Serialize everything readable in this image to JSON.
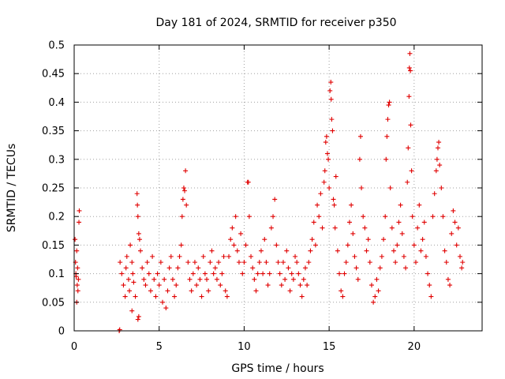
{
  "chart_data": {
    "type": "scatter",
    "title": "Day 181 of 2024, SRMTID for receiver p350",
    "xlabel": "GPS time / hours",
    "ylabel": "SRMTID / TECUs",
    "xlim": [
      0,
      24
    ],
    "ylim": [
      0,
      0.5
    ],
    "xticks": [
      0,
      5,
      10,
      15,
      20
    ],
    "xtick_labels": [
      "0",
      "5",
      "10",
      "15",
      "20"
    ],
    "yticks": [
      0,
      0.05,
      0.1,
      0.15,
      0.2,
      0.25,
      0.3,
      0.35,
      0.4,
      0.45,
      0.5
    ],
    "ytick_labels": [
      "0",
      "0.05",
      "0.1",
      "0.15",
      "0.2",
      "0.25",
      "0.3",
      "0.35",
      "0.4",
      "0.45",
      "0.5"
    ],
    "grid": true,
    "marker": "+",
    "color": "#e00000",
    "series": [
      {
        "name": "SRMTID",
        "points": [
          [
            0.05,
            0.16
          ],
          [
            0.08,
            0.12
          ],
          [
            0.1,
            0.1
          ],
          [
            0.12,
            0.095
          ],
          [
            0.15,
            0.14
          ],
          [
            0.18,
            0.08
          ],
          [
            0.2,
            0.11
          ],
          [
            0.22,
            0.07
          ],
          [
            0.25,
            0.09
          ],
          [
            0.28,
            0.19
          ],
          [
            0.3,
            0.21
          ],
          [
            0.15,
            0.05
          ],
          [
            2.65,
            0.0
          ],
          [
            2.68,
            0.002
          ],
          [
            2.7,
            0.12
          ],
          [
            2.8,
            0.1
          ],
          [
            2.9,
            0.08
          ],
          [
            3.0,
            0.06
          ],
          [
            3.05,
            0.11
          ],
          [
            3.1,
            0.13
          ],
          [
            3.2,
            0.09
          ],
          [
            3.25,
            0.07
          ],
          [
            3.3,
            0.15
          ],
          [
            3.4,
            0.12
          ],
          [
            3.45,
            0.1
          ],
          [
            3.5,
            0.085
          ],
          [
            3.6,
            0.06
          ],
          [
            3.7,
            0.24
          ],
          [
            3.72,
            0.22
          ],
          [
            3.75,
            0.2
          ],
          [
            3.8,
            0.17
          ],
          [
            3.85,
            0.16
          ],
          [
            3.9,
            0.14
          ],
          [
            4.0,
            0.11
          ],
          [
            4.1,
            0.09
          ],
          [
            4.2,
            0.08
          ],
          [
            4.3,
            0.12
          ],
          [
            4.4,
            0.1
          ],
          [
            4.5,
            0.07
          ],
          [
            4.6,
            0.13
          ],
          [
            4.7,
            0.09
          ],
          [
            4.8,
            0.06
          ],
          [
            4.9,
            0.1
          ],
          [
            5.0,
            0.08
          ],
          [
            5.1,
            0.12
          ],
          [
            5.2,
            0.05
          ],
          [
            5.3,
            0.09
          ],
          [
            5.4,
            0.04
          ],
          [
            5.5,
            0.07
          ],
          [
            5.6,
            0.11
          ],
          [
            5.7,
            0.13
          ],
          [
            5.8,
            0.09
          ],
          [
            5.9,
            0.06
          ],
          [
            6.0,
            0.08
          ],
          [
            3.8,
            0.025
          ],
          [
            3.75,
            0.02
          ],
          [
            3.4,
            0.035
          ],
          [
            6.1,
            0.11
          ],
          [
            6.2,
            0.13
          ],
          [
            6.3,
            0.15
          ],
          [
            6.35,
            0.2
          ],
          [
            6.4,
            0.23
          ],
          [
            6.45,
            0.25
          ],
          [
            6.5,
            0.245
          ],
          [
            6.55,
            0.28
          ],
          [
            6.6,
            0.22
          ],
          [
            6.7,
            0.12
          ],
          [
            6.8,
            0.09
          ],
          [
            6.9,
            0.07
          ],
          [
            7.0,
            0.1
          ],
          [
            7.1,
            0.12
          ],
          [
            7.2,
            0.08
          ],
          [
            7.3,
            0.11
          ],
          [
            7.4,
            0.09
          ],
          [
            7.5,
            0.06
          ],
          [
            7.6,
            0.13
          ],
          [
            7.7,
            0.1
          ],
          [
            7.8,
            0.09
          ],
          [
            7.9,
            0.07
          ],
          [
            8.0,
            0.12
          ],
          [
            8.1,
            0.14
          ],
          [
            8.2,
            0.1
          ],
          [
            8.3,
            0.11
          ],
          [
            8.4,
            0.09
          ],
          [
            8.5,
            0.12
          ],
          [
            8.6,
            0.08
          ],
          [
            8.7,
            0.1
          ],
          [
            8.8,
            0.13
          ],
          [
            8.9,
            0.07
          ],
          [
            9.0,
            0.06
          ],
          [
            9.1,
            0.13
          ],
          [
            9.2,
            0.16
          ],
          [
            9.3,
            0.18
          ],
          [
            9.4,
            0.15
          ],
          [
            9.5,
            0.2
          ],
          [
            9.6,
            0.14
          ],
          [
            9.7,
            0.12
          ],
          [
            9.8,
            0.17
          ],
          [
            9.9,
            0.1
          ],
          [
            10.0,
            0.12
          ],
          [
            10.1,
            0.15
          ],
          [
            10.2,
            0.26
          ],
          [
            10.25,
            0.26
          ],
          [
            10.3,
            0.2
          ],
          [
            10.4,
            0.13
          ],
          [
            10.5,
            0.11
          ],
          [
            10.6,
            0.09
          ],
          [
            10.7,
            0.07
          ],
          [
            10.8,
            0.1
          ],
          [
            10.9,
            0.12
          ],
          [
            11.0,
            0.14
          ],
          [
            11.1,
            0.1
          ],
          [
            11.2,
            0.16
          ],
          [
            11.3,
            0.12
          ],
          [
            11.4,
            0.08
          ],
          [
            11.5,
            0.1
          ],
          [
            11.6,
            0.18
          ],
          [
            11.7,
            0.2
          ],
          [
            11.8,
            0.23
          ],
          [
            11.9,
            0.15
          ],
          [
            12.0,
            0.12
          ],
          [
            12.1,
            0.1
          ],
          [
            12.2,
            0.08
          ],
          [
            12.3,
            0.12
          ],
          [
            12.4,
            0.09
          ],
          [
            12.5,
            0.14
          ],
          [
            12.6,
            0.11
          ],
          [
            12.7,
            0.07
          ],
          [
            12.8,
            0.1
          ],
          [
            12.9,
            0.09
          ],
          [
            13.0,
            0.13
          ],
          [
            13.1,
            0.12
          ],
          [
            13.2,
            0.1
          ],
          [
            13.3,
            0.08
          ],
          [
            13.4,
            0.06
          ],
          [
            13.5,
            0.09
          ],
          [
            13.6,
            0.11
          ],
          [
            13.7,
            0.08
          ],
          [
            13.8,
            0.12
          ],
          [
            13.9,
            0.14
          ],
          [
            14.0,
            0.16
          ],
          [
            14.1,
            0.19
          ],
          [
            14.2,
            0.15
          ],
          [
            14.3,
            0.22
          ],
          [
            14.4,
            0.2
          ],
          [
            14.5,
            0.24
          ],
          [
            14.6,
            0.18
          ],
          [
            14.7,
            0.26
          ],
          [
            14.75,
            0.28
          ],
          [
            14.8,
            0.33
          ],
          [
            14.85,
            0.34
          ],
          [
            14.9,
            0.31
          ],
          [
            14.95,
            0.3
          ],
          [
            15.0,
            0.25
          ],
          [
            15.05,
            0.42
          ],
          [
            15.1,
            0.435
          ],
          [
            15.12,
            0.405
          ],
          [
            15.15,
            0.37
          ],
          [
            15.2,
            0.35
          ],
          [
            15.25,
            0.23
          ],
          [
            15.3,
            0.22
          ],
          [
            15.35,
            0.18
          ],
          [
            15.4,
            0.27
          ],
          [
            15.5,
            0.14
          ],
          [
            15.6,
            0.1
          ],
          [
            15.7,
            0.07
          ],
          [
            15.8,
            0.06
          ],
          [
            15.9,
            0.1
          ],
          [
            16.0,
            0.12
          ],
          [
            16.1,
            0.15
          ],
          [
            16.2,
            0.19
          ],
          [
            16.3,
            0.22
          ],
          [
            16.4,
            0.17
          ],
          [
            16.5,
            0.13
          ],
          [
            16.6,
            0.11
          ],
          [
            16.7,
            0.09
          ],
          [
            16.8,
            0.3
          ],
          [
            16.85,
            0.34
          ],
          [
            16.9,
            0.25
          ],
          [
            17.0,
            0.2
          ],
          [
            17.1,
            0.18
          ],
          [
            17.2,
            0.14
          ],
          [
            17.3,
            0.16
          ],
          [
            17.4,
            0.12
          ],
          [
            17.5,
            0.08
          ],
          [
            17.6,
            0.05
          ],
          [
            17.7,
            0.06
          ],
          [
            17.8,
            0.09
          ],
          [
            17.9,
            0.07
          ],
          [
            18.0,
            0.11
          ],
          [
            18.1,
            0.13
          ],
          [
            18.2,
            0.16
          ],
          [
            18.3,
            0.2
          ],
          [
            18.35,
            0.3
          ],
          [
            18.4,
            0.34
          ],
          [
            18.45,
            0.37
          ],
          [
            18.5,
            0.395
          ],
          [
            18.55,
            0.4
          ],
          [
            18.6,
            0.25
          ],
          [
            18.7,
            0.18
          ],
          [
            18.8,
            0.14
          ],
          [
            18.9,
            0.12
          ],
          [
            19.0,
            0.15
          ],
          [
            19.1,
            0.19
          ],
          [
            19.2,
            0.22
          ],
          [
            19.3,
            0.17
          ],
          [
            19.4,
            0.13
          ],
          [
            19.5,
            0.11
          ],
          [
            19.6,
            0.26
          ],
          [
            19.65,
            0.32
          ],
          [
            19.7,
            0.41
          ],
          [
            19.72,
            0.46
          ],
          [
            19.75,
            0.485
          ],
          [
            19.78,
            0.455
          ],
          [
            19.8,
            0.36
          ],
          [
            19.85,
            0.28
          ],
          [
            19.9,
            0.2
          ],
          [
            20.0,
            0.15
          ],
          [
            20.1,
            0.12
          ],
          [
            20.2,
            0.18
          ],
          [
            20.3,
            0.22
          ],
          [
            20.4,
            0.14
          ],
          [
            20.5,
            0.16
          ],
          [
            20.6,
            0.19
          ],
          [
            20.7,
            0.13
          ],
          [
            20.8,
            0.1
          ],
          [
            20.9,
            0.08
          ],
          [
            21.0,
            0.06
          ],
          [
            21.1,
            0.2
          ],
          [
            21.2,
            0.24
          ],
          [
            21.3,
            0.28
          ],
          [
            21.35,
            0.3
          ],
          [
            21.4,
            0.32
          ],
          [
            21.45,
            0.33
          ],
          [
            21.5,
            0.29
          ],
          [
            21.6,
            0.25
          ],
          [
            21.7,
            0.2
          ],
          [
            21.8,
            0.14
          ],
          [
            21.9,
            0.12
          ],
          [
            22.0,
            0.09
          ],
          [
            22.1,
            0.08
          ],
          [
            22.2,
            0.17
          ],
          [
            22.3,
            0.21
          ],
          [
            22.4,
            0.19
          ],
          [
            22.5,
            0.15
          ],
          [
            22.6,
            0.18
          ],
          [
            22.7,
            0.13
          ],
          [
            22.8,
            0.11
          ],
          [
            22.85,
            0.12
          ]
        ]
      }
    ]
  }
}
